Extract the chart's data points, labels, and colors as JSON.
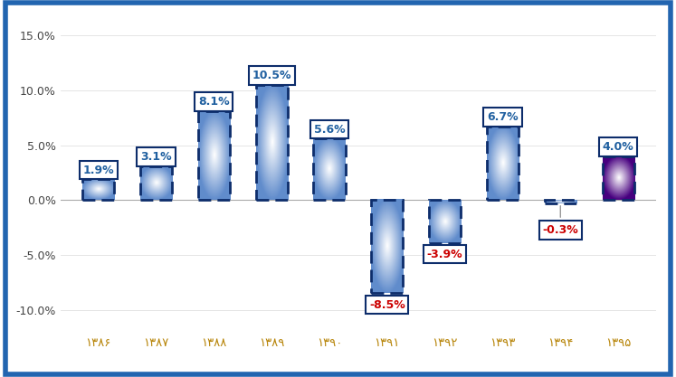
{
  "years": [
    "۱۳۸۶",
    "۱۳۸۷",
    "۱۳۸۸",
    "۱۳۸۹",
    "۱۳۹۰",
    "۱۳۹۱",
    "۱۳۹۲",
    "۱۳۹۳",
    "۱۳۹۴",
    "۱۳۹۵"
  ],
  "values": [
    1.9,
    3.1,
    8.1,
    10.5,
    5.6,
    -8.5,
    -3.9,
    6.7,
    -0.3,
    4.0
  ],
  "labels": [
    "1.9%",
    "3.1%",
    "8.1%",
    "10.5%",
    "5.6%",
    "-8.5%",
    "-3.9%",
    "6.7%",
    "-0.3%",
    "4.0%"
  ],
  "ylim": [
    -12.0,
    16.5
  ],
  "yticks": [
    -10.0,
    -5.0,
    0.0,
    5.0,
    10.0,
    15.0
  ],
  "ytick_labels": [
    "-10.0%",
    "-5.0%",
    "0.0%",
    "5.0%",
    "10.0%",
    "15.0%"
  ],
  "background_color": "#ffffff",
  "border_color": "#2265b0",
  "dashed_color": "#0d2d6b",
  "label_positive_color": "#2060a0",
  "label_negative_color": "#cc0000",
  "bar_width": 0.55,
  "xlim_left": -0.65,
  "xlim_right": 9.65,
  "tick_color": "#b8860b",
  "ytick_color": "#444444"
}
